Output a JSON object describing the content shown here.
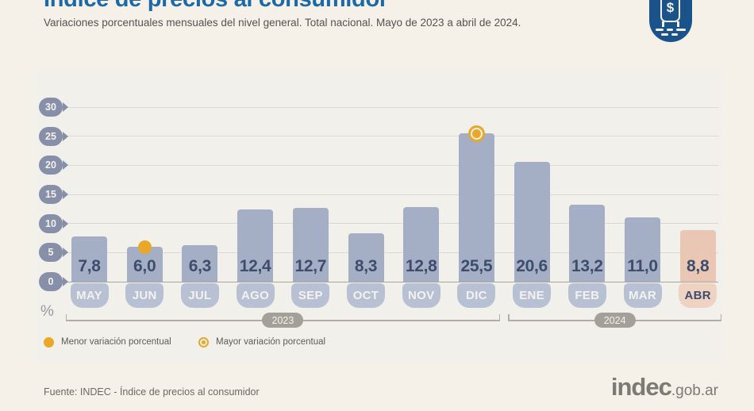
{
  "header": {
    "title": "Índice de precios al consumidor",
    "subtitle": "Variaciones porcentuales mensuales del nivel general. Total nacional. Mayo de 2023 a abril de 2024.",
    "icon_symbol": "$"
  },
  "chart_data": {
    "type": "bar",
    "title": "Índice de precios al consumidor",
    "unit_label": "%",
    "categories": [
      "MAY",
      "JUN",
      "JUL",
      "AGO",
      "SEP",
      "OCT",
      "NOV",
      "DIC",
      "ENE",
      "FEB",
      "MAR",
      "ABR"
    ],
    "values": [
      7.8,
      6.0,
      6.3,
      12.4,
      12.7,
      8.3,
      12.8,
      25.5,
      20.6,
      13.2,
      11.0,
      8.8
    ],
    "value_labels": [
      "7,8",
      "6,0",
      "6,3",
      "12,4",
      "12,7",
      "8,3",
      "12,8",
      "25,5",
      "20,6",
      "13,2",
      "11,0",
      "8,8"
    ],
    "ylim": [
      0,
      30
    ],
    "yticks": [
      30,
      25,
      20,
      15,
      10,
      5,
      0
    ],
    "grid": true,
    "min_marker": {
      "month": "JUN",
      "value": 6.0
    },
    "max_marker": {
      "month": "DIC",
      "value": 25.5
    },
    "highlight_month": "ABR",
    "year_groups": [
      {
        "label": "2023",
        "from": "MAY",
        "to": "DIC"
      },
      {
        "label": "2024",
        "from": "ENE",
        "to": "ABR"
      }
    ]
  },
  "legend": {
    "min_label": "Menor variación porcentual",
    "max_label": "Mayor variación porcentual"
  },
  "footer": {
    "source": "Fuente: INDEC - Índice de precios al consumidor",
    "logo_text": "indec",
    "logo_suffix": ".gob.ar"
  },
  "colors": {
    "title_blue": "#1d69a8",
    "bar": "#a4afc5",
    "bar_tag": "#b8c1d3",
    "bar_highlight": "#eac7b4",
    "tag_highlight": "#eed3c3",
    "value_text": "#3e4d6b",
    "marker_yellow": "#e9a827",
    "ytick_badge": "#878fa9",
    "year_pill": "#a3a09a",
    "panel_bg": "#f2f0ea",
    "page_bg": "#f5f1e8",
    "badge_blue": "#1a5389"
  }
}
